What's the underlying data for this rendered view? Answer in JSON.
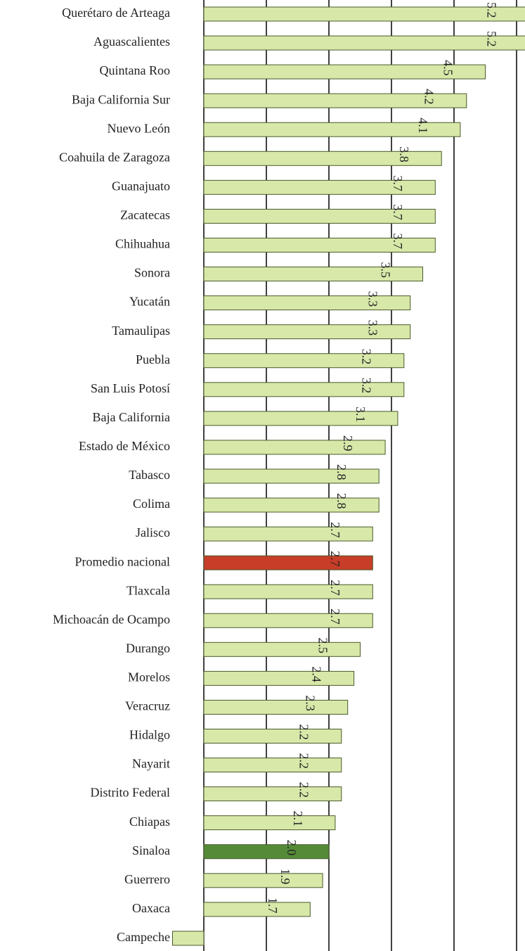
{
  "chart_data": {
    "type": "barh",
    "categories": [
      "Querétaro de Arteaga",
      "Aguascalientes",
      "Quintana Roo",
      "Baja California Sur",
      "Nuevo León",
      "Coahuila de Zaragoza",
      "Guanajuato",
      "Zacatecas",
      "Chihuahua",
      "Sonora",
      "Yucatán",
      "Tamaulipas",
      "Puebla",
      "San Luis Potosí",
      "Baja California",
      "Estado de México",
      "Tabasco",
      "Colima",
      "Jalisco",
      "Promedio nacional",
      "Tlaxcala",
      "Michoacán de Ocampo",
      "Durango",
      "Morelos",
      "Veracruz",
      "Hidalgo",
      "Nayarit",
      "Distrito Federal",
      "Chiapas",
      "Sinaloa",
      "Guerrero",
      "Oaxaca",
      "Campeche"
    ],
    "values": [
      5.2,
      5.2,
      4.5,
      4.2,
      4.1,
      3.8,
      3.7,
      3.7,
      3.7,
      3.5,
      3.3,
      3.3,
      3.2,
      3.2,
      3.1,
      2.9,
      2.8,
      2.8,
      2.7,
      2.7,
      2.7,
      2.7,
      2.5,
      2.4,
      2.3,
      2.2,
      2.2,
      2.2,
      2.1,
      2.0,
      1.9,
      1.7,
      -0.5
    ],
    "value_labels": [
      "5.2",
      "5.2",
      "4.5",
      "4.2",
      "4.1",
      "3.8",
      "3.7",
      "3.7",
      "3.7",
      "3.5",
      "3.3",
      "3.3",
      "3.2",
      "3.2",
      "3.1",
      "2.9",
      "2.8",
      "2.8",
      "2.7",
      "2.7",
      "2.7",
      "2.7",
      "2.5",
      "2.4",
      "2.3",
      "2.2",
      "2.2",
      "2.2",
      "2.1",
      "2.0",
      "1.9",
      "1.7",
      null
    ],
    "colors": [
      "#d7e8a9",
      "#d7e8a9",
      "#d7e8a9",
      "#d7e8a9",
      "#d7e8a9",
      "#d7e8a9",
      "#d7e8a9",
      "#d7e8a9",
      "#d7e8a9",
      "#d7e8a9",
      "#d7e8a9",
      "#d7e8a9",
      "#d7e8a9",
      "#d7e8a9",
      "#d7e8a9",
      "#d7e8a9",
      "#d7e8a9",
      "#d7e8a9",
      "#d7e8a9",
      "#c73d27",
      "#d7e8a9",
      "#d7e8a9",
      "#d7e8a9",
      "#d7e8a9",
      "#d7e8a9",
      "#d7e8a9",
      "#d7e8a9",
      "#d7e8a9",
      "#d7e8a9",
      "#558b38",
      "#d7e8a9",
      "#d7e8a9",
      "#d7e8a9"
    ],
    "xlim": [
      0,
      5
    ],
    "xticks": [
      0,
      1,
      2,
      3,
      4,
      5
    ],
    "grid": true
  }
}
